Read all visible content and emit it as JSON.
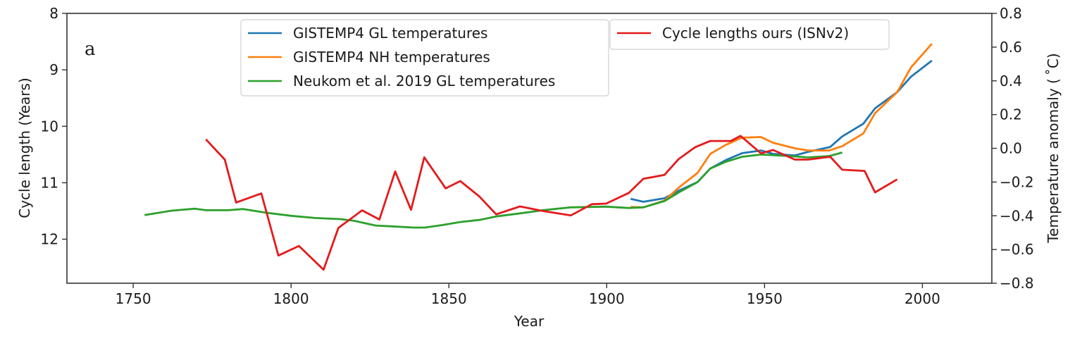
{
  "chart_data": {
    "type": "line",
    "panel_label": "a",
    "xlabel": "Year",
    "ylabel_left": "Cycle length (Years)",
    "ylabel_right": "Temperature anomaly ($^\\circ$C)",
    "ylabel_right_display": "Temperature anomaly ( ˚C)",
    "xlim": [
      1729,
      2022
    ],
    "ylim_left": [
      8,
      12.78
    ],
    "ylim_left_inverted": true,
    "ylim_right": [
      -0.8,
      0.8
    ],
    "xticks": [
      "1750",
      "1800",
      "1850",
      "1900",
      "1950",
      "2000"
    ],
    "yticks_left": [
      "8",
      "9",
      "10",
      "11",
      "12"
    ],
    "yticks_right": [
      "0.8",
      "0.6",
      "0.4",
      "0.2",
      "0.0",
      "−0.2",
      "−0.4",
      "−0.6",
      "−0.8"
    ],
    "grid": false,
    "legend_placement": "top-center",
    "series": [
      {
        "name": "GISTEMP4 GL temperatures",
        "axis": "right",
        "color": "#1f77b4",
        "x": [
          1907.6,
          1911.6,
          1918.3,
          1923,
          1928.8,
          1932.8,
          1937.7,
          1942.9,
          1948.9,
          1952.7,
          1959.6,
          1963.8,
          1970.8,
          1974.6,
          1981.3,
          1985,
          1992,
          1996.4,
          2003
        ],
        "y": [
          -0.3,
          -0.317,
          -0.296,
          -0.25,
          -0.2,
          -0.12,
          -0.07,
          -0.029,
          -0.013,
          -0.033,
          -0.042,
          -0.021,
          0.008,
          0.07,
          0.146,
          0.237,
          0.333,
          0.425,
          0.52
        ]
      },
      {
        "name": "GISTEMP4 NH temperatures",
        "axis": "right",
        "color": "#ff7f0e",
        "x": [
          1907.6,
          1911.6,
          1918.3,
          1923,
          1928.8,
          1932.8,
          1937.7,
          1942.9,
          1948.9,
          1952.7,
          1959.6,
          1963.8,
          1970.5,
          1974.6,
          1981.3,
          1985,
          1992,
          1996.4,
          2003
        ],
        "y": [
          -0.347,
          -0.35,
          -0.31,
          -0.23,
          -0.146,
          -0.033,
          0.02,
          0.063,
          0.067,
          0.033,
          0.0,
          -0.013,
          -0.013,
          0.013,
          0.088,
          0.208,
          0.333,
          0.48,
          0.62
        ]
      },
      {
        "name": "Neukom et al. 2019 GL temperatures",
        "axis": "right",
        "color": "#2ca02c",
        "x": [
          1753.6,
          1762,
          1769.6,
          1773,
          1780,
          1784.8,
          1792.6,
          1800,
          1807.6,
          1815.6,
          1820,
          1826.8,
          1832,
          1838.8,
          1842.4,
          1848,
          1853.6,
          1859.6,
          1865,
          1873.7,
          1879.7,
          1888.6,
          1899.8,
          1907,
          1911.6,
          1918.3,
          1923,
          1928.8,
          1932.8,
          1937.7,
          1942.9,
          1948.9,
          1957.8,
          1963.8,
          1970.5,
          1974.6
        ],
        "y": [
          -0.396,
          -0.37,
          -0.358,
          -0.367,
          -0.367,
          -0.36,
          -0.383,
          -0.4,
          -0.413,
          -0.42,
          -0.43,
          -0.458,
          -0.463,
          -0.47,
          -0.47,
          -0.455,
          -0.437,
          -0.425,
          -0.404,
          -0.383,
          -0.367,
          -0.35,
          -0.346,
          -0.354,
          -0.35,
          -0.313,
          -0.26,
          -0.2,
          -0.12,
          -0.08,
          -0.05,
          -0.037,
          -0.046,
          -0.054,
          -0.046,
          -0.025
        ]
      },
      {
        "name": "Cycle lengths ours (ISNv2)",
        "axis": "left",
        "color": "#e41a1c",
        "x": [
          1773,
          1779,
          1782.6,
          1790.6,
          1796,
          1802.5,
          1810.3,
          1815,
          1822.5,
          1828,
          1833,
          1838,
          1842.2,
          1849,
          1853.6,
          1859.6,
          1865,
          1872.5,
          1879.7,
          1888.6,
          1895.3,
          1899.8,
          1907,
          1911.6,
          1918.3,
          1922.8,
          1928,
          1932.8,
          1939.3,
          1942.4,
          1948.9,
          1952.7,
          1959.6,
          1963.8,
          1970.8,
          1974.6,
          1981.7,
          1985,
          1992
        ],
        "y": [
          10.23,
          10.59,
          11.35,
          11.19,
          12.29,
          12.12,
          12.54,
          11.8,
          11.49,
          11.65,
          10.8,
          11.48,
          10.55,
          11.1,
          10.97,
          11.24,
          11.56,
          11.42,
          11.5,
          11.58,
          11.38,
          11.37,
          11.18,
          10.93,
          10.86,
          10.58,
          10.37,
          10.26,
          10.26,
          10.17,
          10.48,
          10.42,
          10.59,
          10.59,
          10.54,
          10.77,
          10.79,
          11.17,
          10.94
        ]
      }
    ]
  }
}
